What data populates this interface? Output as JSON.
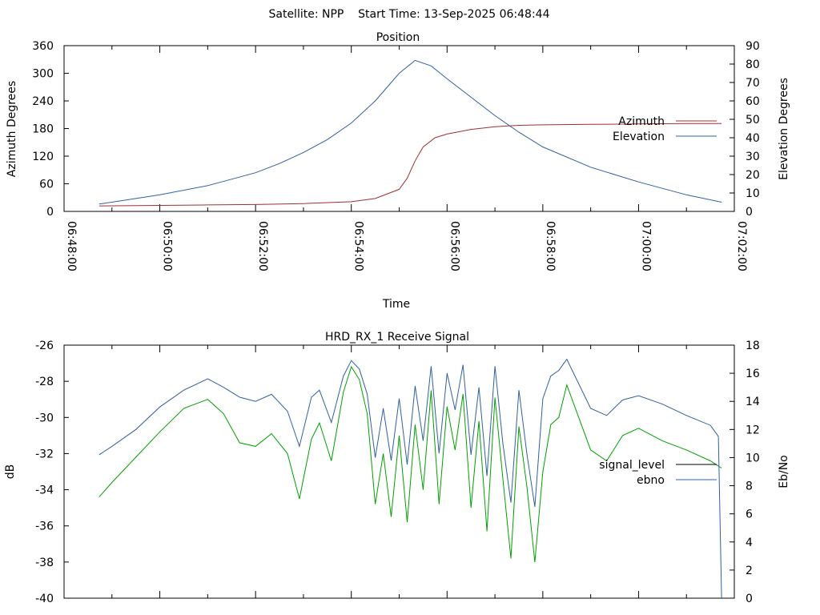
{
  "header": {
    "title": "Satellite: NPP    Start Time: 13-Sep-2025 06:48:44"
  },
  "colors": {
    "azimuth": "#a03030",
    "elevation": "#3060a0",
    "signal_level": "#00a000",
    "ebno": "#3060a0",
    "axis": "#000000"
  },
  "chart_data": [
    {
      "type": "line",
      "title": "Position",
      "xlabel": "Time",
      "ylabel": "Azimuth Degrees",
      "y2label": "Elevation Degrees",
      "xlim": [
        "06:48:00",
        "07:02:00"
      ],
      "ylim": [
        0,
        360
      ],
      "y2lim": [
        0,
        90
      ],
      "x_ticks": [
        "06:48:00",
        "06:50:00",
        "06:52:00",
        "06:54:00",
        "06:56:00",
        "06:58:00",
        "07:00:00",
        "07:02:00"
      ],
      "y_ticks": [
        "0",
        "60",
        "120",
        "180",
        "240",
        "300",
        "360"
      ],
      "y2_ticks": [
        "0",
        "10",
        "20",
        "30",
        "40",
        "50",
        "60",
        "70",
        "80",
        "90"
      ],
      "grid": false,
      "legend": "right",
      "series": [
        {
          "name": "Azimuth",
          "axis": "y",
          "x": [
            "06:48:44",
            "06:50:00",
            "06:51:00",
            "06:52:00",
            "06:53:00",
            "06:54:00",
            "06:54:30",
            "06:55:00",
            "06:55:10",
            "06:55:20",
            "06:55:30",
            "06:55:45",
            "06:56:00",
            "06:56:30",
            "06:57:00",
            "06:57:30",
            "06:58:00",
            "06:59:00",
            "07:00:00",
            "07:01:00",
            "07:01:44"
          ],
          "values": [
            12,
            13,
            14,
            15,
            17,
            21,
            28,
            48,
            72,
            110,
            140,
            160,
            168,
            178,
            184,
            187,
            188,
            189,
            190,
            191,
            191
          ]
        },
        {
          "name": "Elevation",
          "axis": "y2",
          "x": [
            "06:48:44",
            "06:49:30",
            "06:50:00",
            "06:51:00",
            "06:52:00",
            "06:52:30",
            "06:53:00",
            "06:53:30",
            "06:54:00",
            "06:54:30",
            "06:55:00",
            "06:55:20",
            "06:55:40",
            "06:56:00",
            "06:56:30",
            "06:57:00",
            "06:57:30",
            "06:58:00",
            "06:59:00",
            "07:00:00",
            "07:01:00",
            "07:01:44"
          ],
          "values": [
            4,
            7,
            9,
            14,
            21,
            26,
            32,
            39,
            48,
            60,
            75,
            82,
            79,
            72,
            62,
            52,
            43,
            35,
            24,
            16,
            9,
            5
          ]
        }
      ]
    },
    {
      "type": "line",
      "title": "HRD_RX_1 Receive Signal",
      "xlabel": "",
      "ylabel": "dB",
      "y2label": "Eb/No",
      "xlim": [
        "06:48:00",
        "07:02:00"
      ],
      "ylim": [
        -40,
        -26
      ],
      "y2lim": [
        0,
        18
      ],
      "y_ticks": [
        "-40",
        "-38",
        "-36",
        "-34",
        "-32",
        "-30",
        "-28",
        "-26"
      ],
      "y2_ticks": [
        "0",
        "2",
        "4",
        "6",
        "8",
        "10",
        "12",
        "14",
        "16",
        "18"
      ],
      "grid": false,
      "legend": "right",
      "series": [
        {
          "name": "signal_level",
          "axis": "y",
          "x": [
            "06:48:44",
            "06:49:00",
            "06:49:30",
            "06:50:00",
            "06:50:30",
            "06:51:00",
            "06:51:20",
            "06:51:40",
            "06:52:00",
            "06:52:20",
            "06:52:40",
            "06:52:55",
            "06:53:10",
            "06:53:20",
            "06:53:35",
            "06:53:50",
            "06:54:00",
            "06:54:10",
            "06:54:20",
            "06:54:30",
            "06:54:40",
            "06:54:50",
            "06:55:00",
            "06:55:10",
            "06:55:20",
            "06:55:30",
            "06:55:40",
            "06:55:50",
            "06:56:00",
            "06:56:10",
            "06:56:20",
            "06:56:30",
            "06:56:40",
            "06:56:50",
            "06:57:00",
            "06:57:10",
            "06:57:20",
            "06:57:30",
            "06:57:40",
            "06:57:50",
            "06:58:00",
            "06:58:10",
            "06:58:20",
            "06:58:30",
            "06:59:00",
            "06:59:20",
            "06:59:40",
            "07:00:00",
            "07:00:30",
            "07:01:00",
            "07:01:30",
            "07:01:44"
          ],
          "values": [
            -34.4,
            -33.6,
            -32.2,
            -30.8,
            -29.5,
            -29.0,
            -29.8,
            -31.4,
            -31.6,
            -30.9,
            -32.0,
            -34.5,
            -31.2,
            -30.3,
            -32.4,
            -28.6,
            -27.2,
            -27.9,
            -29.8,
            -34.8,
            -32.0,
            -35.5,
            -31.0,
            -35.8,
            -30.4,
            -34.0,
            -28.5,
            -34.8,
            -29.4,
            -31.8,
            -28.7,
            -35.0,
            -30.2,
            -36.3,
            -28.9,
            -33.4,
            -37.8,
            -30.5,
            -33.8,
            -38.0,
            -33.0,
            -30.4,
            -30.0,
            -28.2,
            -31.8,
            -32.4,
            -31.0,
            -30.6,
            -31.3,
            -31.8,
            -32.4,
            -32.8
          ]
        },
        {
          "name": "ebno",
          "axis": "y2",
          "x": [
            "06:48:44",
            "06:49:00",
            "06:49:30",
            "06:50:00",
            "06:50:30",
            "06:51:00",
            "06:51:20",
            "06:51:40",
            "06:52:00",
            "06:52:20",
            "06:52:40",
            "06:52:55",
            "06:53:10",
            "06:53:20",
            "06:53:35",
            "06:53:50",
            "06:54:00",
            "06:54:10",
            "06:54:20",
            "06:54:30",
            "06:54:40",
            "06:54:50",
            "06:55:00",
            "06:55:10",
            "06:55:20",
            "06:55:30",
            "06:55:40",
            "06:55:50",
            "06:56:00",
            "06:56:10",
            "06:56:20",
            "06:56:30",
            "06:56:40",
            "06:56:50",
            "06:57:00",
            "06:57:10",
            "06:57:20",
            "06:57:30",
            "06:57:40",
            "06:57:50",
            "06:58:00",
            "06:58:10",
            "06:58:20",
            "06:58:30",
            "06:59:00",
            "06:59:20",
            "06:59:40",
            "07:00:00",
            "07:00:30",
            "07:01:00",
            "07:01:30",
            "07:01:40",
            "07:01:44"
          ],
          "values": [
            10.2,
            10.8,
            12.0,
            13.6,
            14.8,
            15.6,
            15.0,
            14.3,
            14.0,
            14.5,
            13.3,
            10.8,
            14.3,
            14.8,
            12.5,
            15.8,
            16.9,
            16.3,
            14.5,
            10.0,
            13.5,
            9.8,
            14.2,
            9.5,
            15.1,
            11.2,
            16.5,
            10.3,
            16.0,
            13.4,
            16.6,
            10.2,
            15.0,
            8.7,
            16.5,
            11.0,
            6.8,
            14.8,
            10.3,
            6.5,
            14.2,
            15.8,
            16.2,
            17.0,
            13.5,
            13.0,
            14.1,
            14.4,
            13.8,
            13.0,
            12.3,
            11.5,
            0.0
          ]
        }
      ]
    }
  ]
}
